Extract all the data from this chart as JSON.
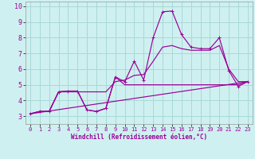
{
  "bg_color": "#cff0f0",
  "grid_color": "#a8d8d8",
  "line_color": "#990099",
  "label_color": "#990099",
  "xlim": [
    -0.5,
    23.5
  ],
  "ylim": [
    2.5,
    10.3
  ],
  "xlabel": "Windchill (Refroidissement éolien,°C)",
  "xticks": [
    0,
    1,
    2,
    3,
    4,
    5,
    6,
    7,
    8,
    9,
    10,
    11,
    12,
    13,
    14,
    15,
    16,
    17,
    18,
    19,
    20,
    21,
    22,
    23
  ],
  "yticks": [
    3,
    4,
    5,
    6,
    7,
    8,
    9,
    10
  ],
  "line1_x": [
    0,
    1,
    2,
    3,
    4,
    5,
    6,
    7,
    8,
    9,
    10,
    11,
    12,
    13,
    14,
    15,
    16,
    17,
    18,
    19,
    20,
    21,
    22,
    23
  ],
  "line1_y": [
    3.15,
    3.3,
    3.3,
    4.55,
    4.6,
    4.6,
    3.4,
    3.3,
    3.5,
    5.5,
    5.2,
    6.5,
    5.3,
    8.0,
    9.65,
    9.7,
    8.2,
    7.4,
    7.3,
    7.3,
    8.0,
    5.9,
    4.9,
    5.2
  ],
  "line2_x": [
    0,
    23
  ],
  "line2_y": [
    3.15,
    5.2
  ],
  "line3_x": [
    0,
    23
  ],
  "line3_y": [
    3.15,
    5.2
  ],
  "line4_x": [
    0,
    1,
    2,
    3,
    4,
    5,
    6,
    7,
    8,
    9,
    10,
    11,
    12,
    13,
    14,
    15,
    16,
    17,
    18,
    19,
    20,
    21,
    22,
    23
  ],
  "line4_y": [
    3.15,
    3.3,
    3.3,
    4.55,
    4.6,
    4.6,
    3.4,
    3.3,
    3.5,
    5.5,
    5.0,
    5.0,
    5.0,
    5.0,
    5.0,
    5.0,
    5.0,
    5.0,
    5.0,
    5.0,
    5.0,
    5.0,
    5.0,
    5.2
  ],
  "line5_x": [
    0,
    1,
    2,
    3,
    4,
    5,
    6,
    7,
    8,
    9,
    10,
    11,
    12,
    13,
    14,
    15,
    16,
    17,
    18,
    19,
    20,
    21,
    22,
    23
  ],
  "line5_y": [
    3.15,
    3.3,
    3.3,
    4.55,
    4.55,
    4.55,
    4.55,
    4.55,
    4.55,
    5.2,
    5.3,
    5.6,
    5.65,
    6.5,
    7.4,
    7.5,
    7.3,
    7.2,
    7.2,
    7.2,
    7.5,
    6.0,
    5.2,
    5.2
  ]
}
